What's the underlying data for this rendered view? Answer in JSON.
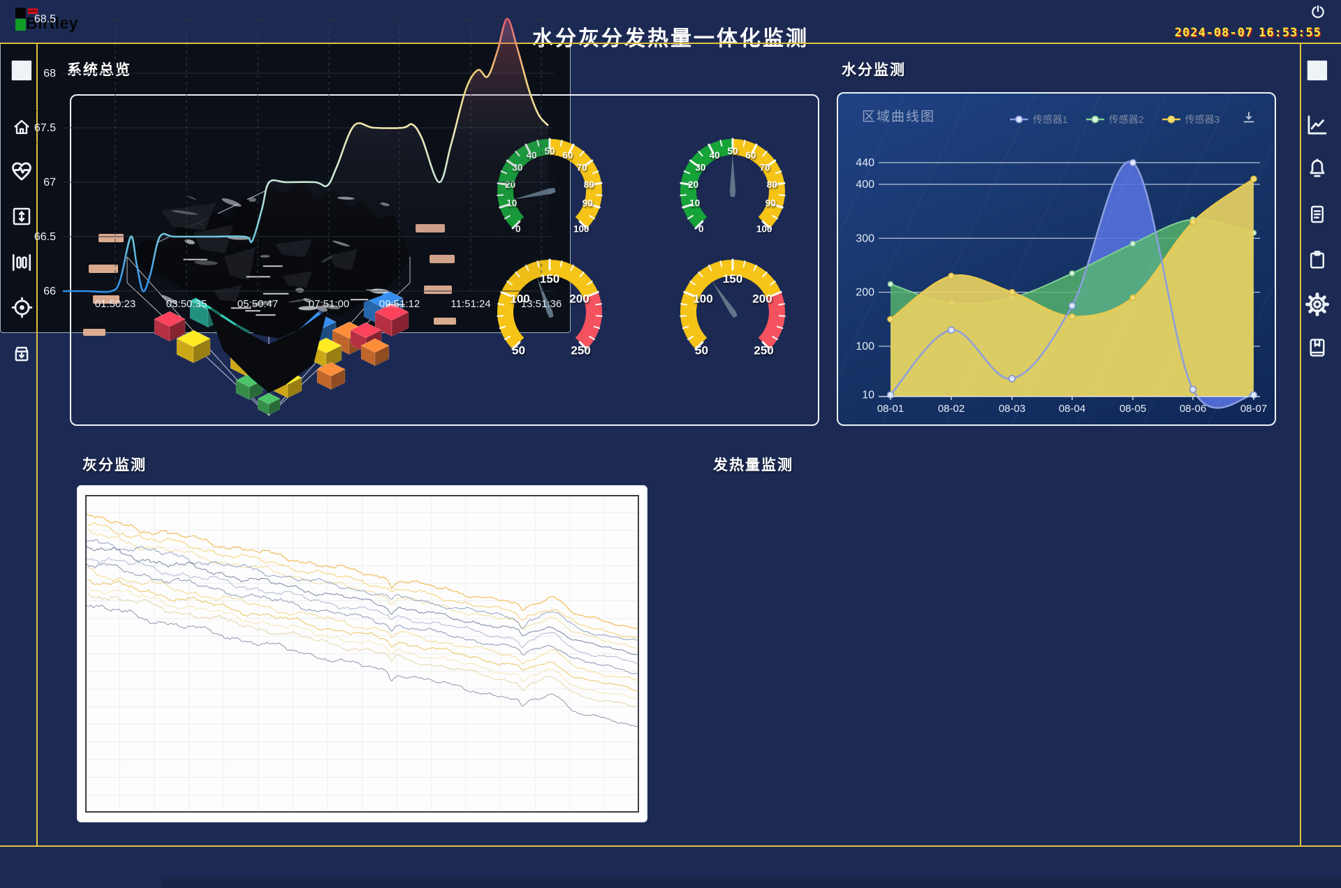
{
  "app": {
    "logo_text": "Birtley",
    "title": "水分灰分发热量一体化监测",
    "date": "2024-08-07",
    "time": "16:53:55"
  },
  "colors": {
    "background": "#1c2a53",
    "accent_line": "#e3c13c",
    "panel_border": "#eef2f8",
    "gauge_green": "#16a338",
    "gauge_yellow": "#f5c417",
    "gauge_red": "#f4525e",
    "clock_text": "#f6ef3d"
  },
  "sidebar_left": {
    "items": [
      {
        "name": "apps",
        "icon": "grid-icon"
      },
      {
        "name": "home",
        "icon": "home-icon",
        "active": true
      },
      {
        "name": "health-monitor",
        "icon": "heart-pulse-icon"
      },
      {
        "name": "level-range",
        "icon": "vertical-arrows-icon"
      },
      {
        "name": "channels",
        "icon": "bars-icon"
      },
      {
        "name": "target",
        "icon": "target-icon"
      },
      {
        "name": "archive",
        "icon": "archive-icon"
      }
    ]
  },
  "sidebar_right": {
    "items": [
      {
        "name": "apps",
        "icon": "grid-icon"
      },
      {
        "name": "trend",
        "icon": "line-chart-icon"
      },
      {
        "name": "alarms",
        "icon": "bell-icon"
      },
      {
        "name": "logs",
        "icon": "document-icon"
      },
      {
        "name": "tasks",
        "icon": "clipboard-icon"
      },
      {
        "name": "settings",
        "icon": "gear-icon"
      },
      {
        "name": "manual",
        "icon": "book-icon"
      }
    ]
  },
  "panels": {
    "overview": {
      "title": "系统总览"
    },
    "moisture": {
      "title": "水分监测",
      "chart_header": "区域曲线图"
    },
    "ash": {
      "title": "灰分监测"
    },
    "calorific": {
      "title": "发热量监测"
    }
  },
  "chart_data": [
    {
      "id": "gauge-1",
      "type": "gauge",
      "min": 0,
      "max": 100,
      "value": 12,
      "tick_minor": 5,
      "tick_major": 10,
      "label_step": 10,
      "zones": [
        {
          "from": 0,
          "to": 50,
          "color": "#16a338"
        },
        {
          "from": 50,
          "to": 100,
          "color": "#f5c417"
        }
      ]
    },
    {
      "id": "gauge-2",
      "type": "gauge",
      "min": 0,
      "max": 100,
      "value": 50,
      "tick_minor": 5,
      "tick_major": 10,
      "label_step": 10,
      "zones": [
        {
          "from": 0,
          "to": 50,
          "color": "#16a338"
        },
        {
          "from": 50,
          "to": 100,
          "color": "#f5c417"
        }
      ]
    },
    {
      "id": "gauge-3",
      "type": "gauge",
      "min": 50,
      "max": 250,
      "value": 135,
      "tick_minor": 10,
      "tick_major": 50,
      "label_step": 50,
      "zones": [
        {
          "from": 50,
          "to": 200,
          "color": "#f5c417"
        },
        {
          "from": 200,
          "to": 250,
          "color": "#f4525e"
        }
      ]
    },
    {
      "id": "gauge-4",
      "type": "gauge",
      "min": 50,
      "max": 250,
      "value": 125,
      "tick_minor": 10,
      "tick_major": 50,
      "label_step": 50,
      "zones": [
        {
          "from": 50,
          "to": 200,
          "color": "#f5c417"
        },
        {
          "from": 200,
          "to": 250,
          "color": "#f4525e"
        }
      ]
    },
    {
      "id": "moisture",
      "type": "area",
      "title": "区域曲线图",
      "categories": [
        "08-01",
        "08-02",
        "08-03",
        "08-04",
        "08-05",
        "08-06",
        "08-07"
      ],
      "yticks": [
        440,
        400,
        300,
        200,
        100,
        10
      ],
      "ylim": [
        10,
        460
      ],
      "grid": true,
      "legend_position": "top-right",
      "series": [
        {
          "name": "传感器1",
          "color": "#8c9ede",
          "fill": "rgba(86,115,224,0.88)",
          "values": [
            10,
            130,
            40,
            175,
            440,
            20,
            10
          ]
        },
        {
          "name": "传感器2",
          "color": "#82cf92",
          "fill": "rgba(88,185,108,0.80)",
          "values": [
            215,
            180,
            190,
            235,
            290,
            335,
            310
          ]
        },
        {
          "name": "传感器3",
          "color": "#e9c94e",
          "fill": "rgba(229,207,98,0.93)",
          "values": [
            150,
            230,
            200,
            155,
            190,
            330,
            410
          ]
        }
      ]
    },
    {
      "id": "ash",
      "type": "multi-line",
      "note": "unlabeled noisy trend lines descending left to right, white plot with light grid",
      "grid": {
        "h_lines": 18,
        "v_lines": 16
      },
      "series": [
        {
          "color": "#f0b13a",
          "start": 0.07,
          "end": 0.42,
          "seed": 11
        },
        {
          "color": "#f6cf6e",
          "start": 0.095,
          "end": 0.45,
          "seed": 22
        },
        {
          "color": "#f3dc9a",
          "start": 0.12,
          "end": 0.48,
          "seed": 33
        },
        {
          "color": "#93a1bf",
          "start": 0.14,
          "end": 0.46,
          "seed": 44
        },
        {
          "color": "#76869f",
          "start": 0.165,
          "end": 0.5,
          "seed": 55
        },
        {
          "color": "#aeb8cf",
          "start": 0.19,
          "end": 0.53,
          "seed": 66
        },
        {
          "color": "#8b97b0",
          "start": 0.215,
          "end": 0.56,
          "seed": 77
        },
        {
          "color": "#f2d98c",
          "start": 0.24,
          "end": 0.585,
          "seed": 88
        },
        {
          "color": "#eec45e",
          "start": 0.265,
          "end": 0.615,
          "seed": 99
        },
        {
          "color": "#f6e7b2",
          "start": 0.285,
          "end": 0.645,
          "seed": 110
        },
        {
          "color": "#e5d5a5",
          "start": 0.305,
          "end": 0.67,
          "seed": 121
        },
        {
          "color": "#8f95a8",
          "start": 0.345,
          "end": 0.73,
          "seed": 132
        }
      ]
    },
    {
      "id": "calorific",
      "type": "line",
      "x_labels": [
        "01:50:23",
        "03:50:35",
        "05:50:47",
        "07:51:00",
        "09:51:12",
        "11:51:24",
        "13:51:36"
      ],
      "yticks": [
        68.5,
        68,
        67.5,
        67,
        66.5,
        66
      ],
      "ylim": [
        66,
        68.5
      ],
      "gradient_stops": [
        "#2e8fe8",
        "#6fc6dc",
        "#c8e8d8",
        "#efe7b0",
        "#eecd74",
        "#e25f70"
      ],
      "points": [
        [
          0.0,
          66.0
        ],
        [
          0.05,
          66.0
        ],
        [
          0.1,
          66.0
        ],
        [
          0.118,
          66.1
        ],
        [
          0.14,
          66.5
        ],
        [
          0.152,
          66.25
        ],
        [
          0.165,
          66.0
        ],
        [
          0.18,
          66.15
        ],
        [
          0.2,
          66.5
        ],
        [
          0.23,
          66.5
        ],
        [
          0.3,
          66.5
        ],
        [
          0.375,
          66.5
        ],
        [
          0.39,
          66.46
        ],
        [
          0.41,
          66.75
        ],
        [
          0.425,
          67.0
        ],
        [
          0.46,
          67.0
        ],
        [
          0.52,
          67.0
        ],
        [
          0.545,
          66.97
        ],
        [
          0.565,
          67.15
        ],
        [
          0.6,
          67.52
        ],
        [
          0.64,
          67.5
        ],
        [
          0.7,
          67.5
        ],
        [
          0.72,
          67.53
        ],
        [
          0.74,
          67.4
        ],
        [
          0.775,
          67.0
        ],
        [
          0.8,
          67.35
        ],
        [
          0.83,
          67.85
        ],
        [
          0.855,
          68.03
        ],
        [
          0.875,
          67.97
        ],
        [
          0.895,
          68.2
        ],
        [
          0.915,
          68.5
        ],
        [
          0.935,
          68.25
        ],
        [
          0.96,
          67.85
        ],
        [
          0.98,
          67.62
        ],
        [
          1.0,
          67.52
        ]
      ]
    }
  ]
}
